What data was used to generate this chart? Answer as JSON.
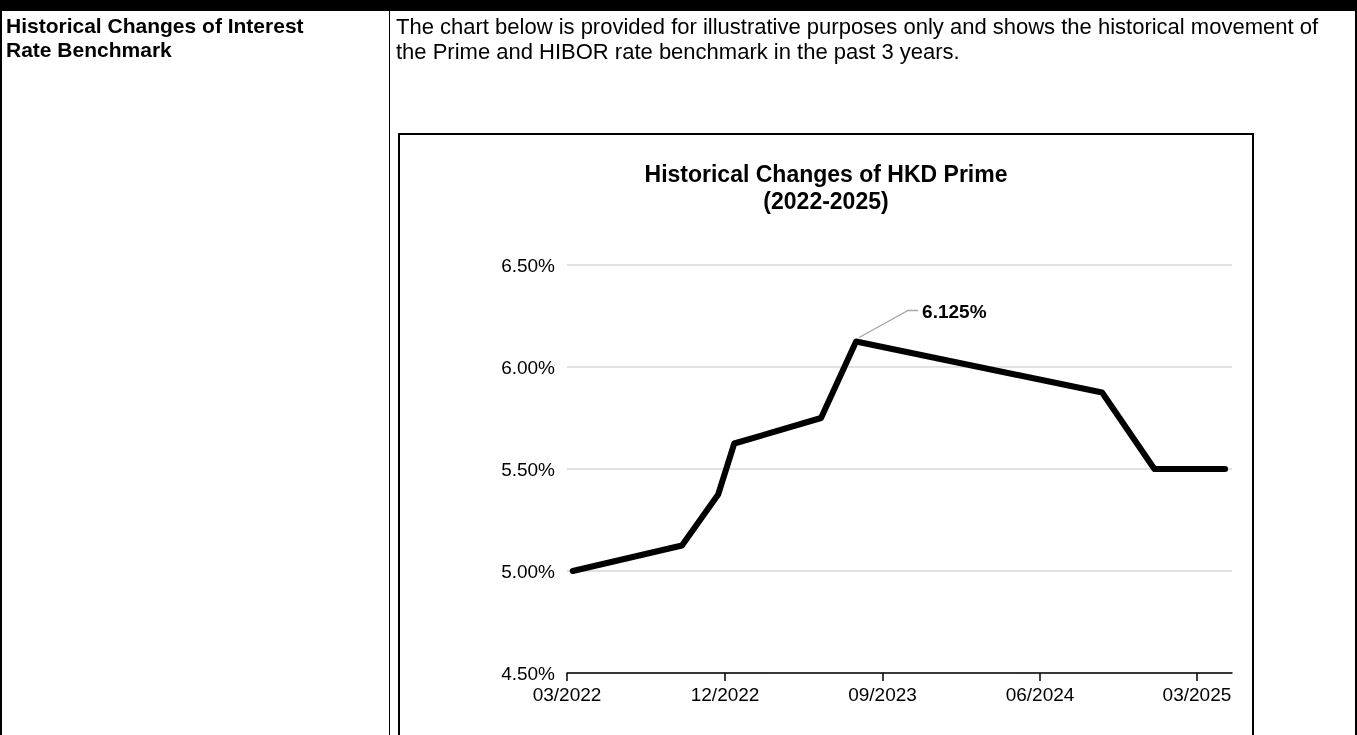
{
  "chart_data": {
    "type": "line",
    "title": "Historical Changes of HKD Prime\n(2022-2025)",
    "annotations": [
      "Historical Changes of Interest Rate Benchmark",
      "The chart below is provided for illustrative purposes only and shows the historical movement of the Prime and HIBOR rate benchmark in the past 3 years.",
      {
        "text": "6.125%",
        "x": "2023-07-17",
        "y": 6.125
      }
    ],
    "x": [
      "2022-03-11",
      "2022-09-17",
      "2022-11-19",
      "2022-12-17",
      "2023-05-17",
      "2023-07-17",
      "2024-09-17",
      "2024-12-17",
      "2025-04-19"
    ],
    "series": [
      {
        "color": "#000000",
        "values": [
          5.0,
          5.125,
          5.375,
          5.625,
          5.75,
          6.125,
          5.875,
          5.5,
          5.5
        ]
      }
    ],
    "xlim": [
      "2022-03",
      "2025-05"
    ],
    "xticks": [
      {
        "value": "2022-03",
        "label": "03/2022"
      },
      {
        "value": "2022-12",
        "label": "12/2022"
      },
      {
        "value": "2023-09",
        "label": "09/2023"
      },
      {
        "value": "2024-06",
        "label": "06/2024"
      },
      {
        "value": "2025-03",
        "label": "03/2025"
      }
    ],
    "ylim": [
      4.5,
      6.5
    ],
    "yticks": [
      {
        "value": 4.5,
        "label": "4.50%"
      },
      {
        "value": 5.0,
        "label": "5.00%"
      },
      {
        "value": 5.5,
        "label": "5.50%"
      },
      {
        "value": 6.0,
        "label": "6.00%"
      },
      {
        "value": 6.5,
        "label": "6.50%"
      }
    ],
    "grid": "y",
    "marker": "none",
    "line_style": "solid"
  }
}
